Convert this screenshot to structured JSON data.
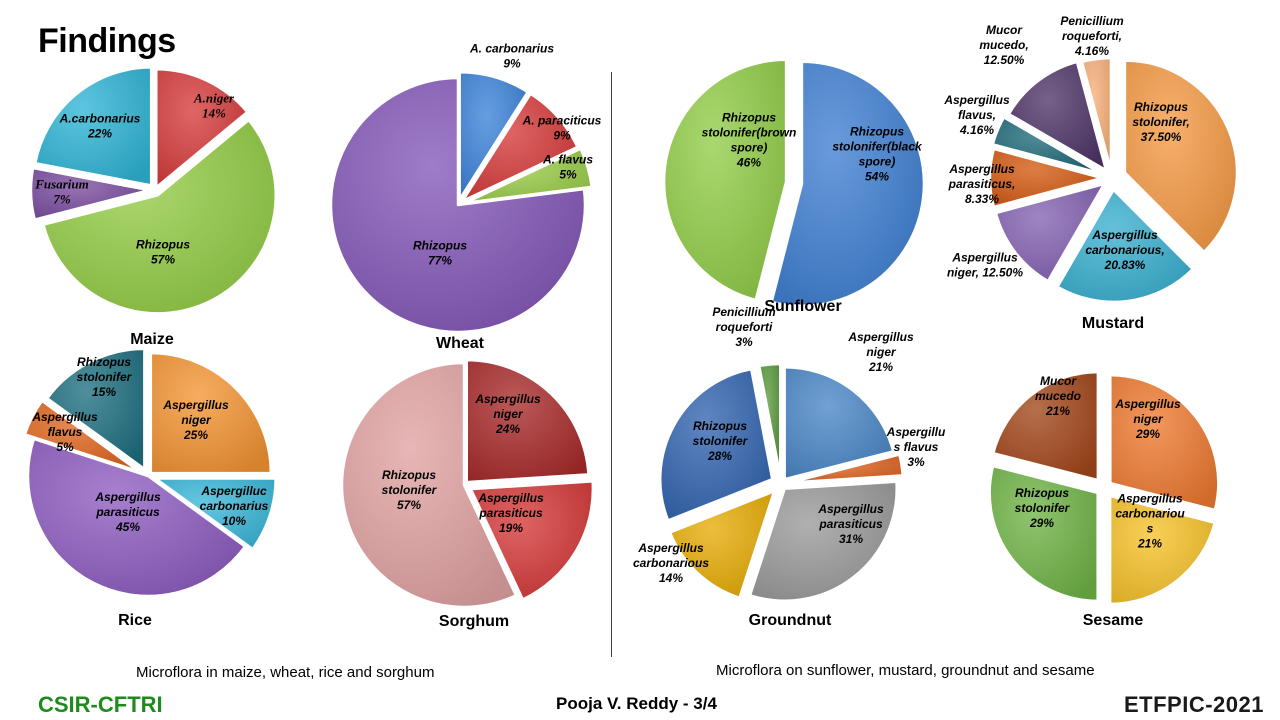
{
  "slide": {
    "title": "Findings",
    "caption_left": "Microflora in maize, wheat, rice and sorghum",
    "caption_right": "Microflora on sunflower, mustard, groundnut and sesame",
    "footer_left": "CSIR-CFTRI",
    "footer_center": "Pooja V. Reddy - 3/4",
    "footer_right": "ETFPIC-2021"
  },
  "chart_data": [
    {
      "type": "pie",
      "title": "Maize",
      "slices": [
        {
          "label": [
            "A.niger",
            "14%"
          ],
          "value": 14,
          "color": "#d63b3b"
        },
        {
          "label": [
            "Rhizopus",
            "57%"
          ],
          "value": 57,
          "color": "#93cc45"
        },
        {
          "label": [
            "Fusarium",
            "7%"
          ],
          "value": 7,
          "color": "#7a4c9f"
        },
        {
          "label": [
            "A.carbonarius",
            "22%"
          ],
          "value": 22,
          "color": "#2fb5d6"
        }
      ]
    },
    {
      "type": "pie",
      "title": "Wheat",
      "slices": [
        {
          "label": [
            "A. carbonarius",
            "9%"
          ],
          "value": 9,
          "color": "#3c82d8"
        },
        {
          "label": [
            "A. paraciticus",
            "9%"
          ],
          "value": 9,
          "color": "#d63a3a"
        },
        {
          "label": [
            "A. flavus",
            "5%"
          ],
          "value": 5,
          "color": "#99cc48"
        },
        {
          "label": [
            "Rhizopus",
            "77%"
          ],
          "value": 77,
          "color": "#8457b8"
        }
      ]
    },
    {
      "type": "pie",
      "title": "Rice",
      "slices": [
        {
          "label": [
            "Aspergillus",
            "niger",
            "25%"
          ],
          "value": 25,
          "color": "#f39433"
        },
        {
          "label": [
            "Aspergilluc",
            "carbonarius",
            "10%"
          ],
          "value": 10,
          "color": "#3ab7d8"
        },
        {
          "label": [
            "Aspergillus",
            "parasiticus",
            "45%"
          ],
          "value": 45,
          "color": "#8d5cc0"
        },
        {
          "label": [
            "Aspergillus",
            "flavus",
            "5%"
          ],
          "value": 5,
          "color": "#e0651c"
        },
        {
          "label": [
            "Rhizopus",
            "stolonifer",
            "15%"
          ],
          "value": 15,
          "color": "#1f6f80"
        }
      ]
    },
    {
      "type": "pie",
      "title": "Sorghum",
      "slices": [
        {
          "label": [
            "Aspergillus",
            "niger",
            "24%"
          ],
          "value": 24,
          "color": "#a82a2a"
        },
        {
          "label": [
            "Aspergillus",
            "parasiticus",
            "19%"
          ],
          "value": 19,
          "color": "#d53838"
        },
        {
          "label": [
            "Rhizopus",
            "stolonifer",
            "57%"
          ],
          "value": 57,
          "color": "#e1a2a2"
        }
      ]
    },
    {
      "type": "pie",
      "title": "Sunflower",
      "slices": [
        {
          "label": [
            "Rhizopus",
            "stolonifer(black",
            "spore)",
            "54%"
          ],
          "value": 54,
          "color": "#3f7fd2"
        },
        {
          "label": [
            "Rhizopus",
            "stolonifer(brown",
            "spore)",
            "46%"
          ],
          "value": 46,
          "color": "#92cd48"
        }
      ]
    },
    {
      "type": "pie",
      "title": "Mustard",
      "slices": [
        {
          "label": [
            "Rhizopus",
            "stolonifer,",
            "37.50%"
          ],
          "value": 37.5,
          "color": "#f59a44"
        },
        {
          "label": [
            "Aspergillus",
            "carbonarious,",
            "20.83%"
          ],
          "value": 20.83,
          "color": "#3ab0d0"
        },
        {
          "label": [
            "Aspergillus",
            "niger, 12.50%"
          ],
          "value": 12.5,
          "color": "#8462b2"
        },
        {
          "label": [
            "Aspergillus",
            "parasiticus,",
            "8.33%"
          ],
          "value": 8.33,
          "color": "#d35a12"
        },
        {
          "label": [
            "Aspergillus",
            "flavus,",
            "4.16%"
          ],
          "value": 4.16,
          "color": "#1d6a78"
        },
        {
          "label": [
            "Mucor",
            "mucedo,",
            "12.50%"
          ],
          "value": 12.5,
          "color": "#4e3468"
        },
        {
          "label": [
            "Penicillium",
            "roqueforti,",
            "4.16%"
          ],
          "value": 4.16,
          "color": "#f7b07a"
        }
      ]
    },
    {
      "type": "pie",
      "title": "Groundnut",
      "slices": [
        {
          "label": [
            "Aspergillus",
            "niger",
            "21%"
          ],
          "value": 21,
          "color": "#4a87c6"
        },
        {
          "label": [
            "Aspergillu",
            "s flavus",
            "3%"
          ],
          "value": 3,
          "color": "#de6422"
        },
        {
          "label": [
            "Aspergillus",
            "parasiticus",
            "31%"
          ],
          "value": 31,
          "color": "#9a9a9a"
        },
        {
          "label": [
            "Aspergillus",
            "carbonarious",
            "14%"
          ],
          "value": 14,
          "color": "#e6ac06"
        },
        {
          "label": [
            "Rhizopus",
            "stolonifer",
            "28%"
          ],
          "value": 28,
          "color": "#3264b0"
        },
        {
          "label": [
            "Penicillium",
            "roqueforti",
            "3%"
          ],
          "value": 3,
          "color": "#5a9a3c"
        }
      ]
    },
    {
      "type": "pie",
      "title": "Sesame",
      "slices": [
        {
          "label": [
            "Aspergillus",
            "niger",
            "29%"
          ],
          "value": 29,
          "color": "#ee7a30"
        },
        {
          "label": [
            "Aspergillus",
            "carbonariou",
            "s",
            "21%"
          ],
          "value": 21,
          "color": "#f6c22a"
        },
        {
          "label": [
            "Rhizopus",
            "stolonifer",
            "29%"
          ],
          "value": 29,
          "color": "#6fb347"
        },
        {
          "label": [
            "Mucor",
            "mucedo",
            "21%"
          ],
          "value": 21,
          "color": "#a2461a"
        }
      ]
    }
  ]
}
